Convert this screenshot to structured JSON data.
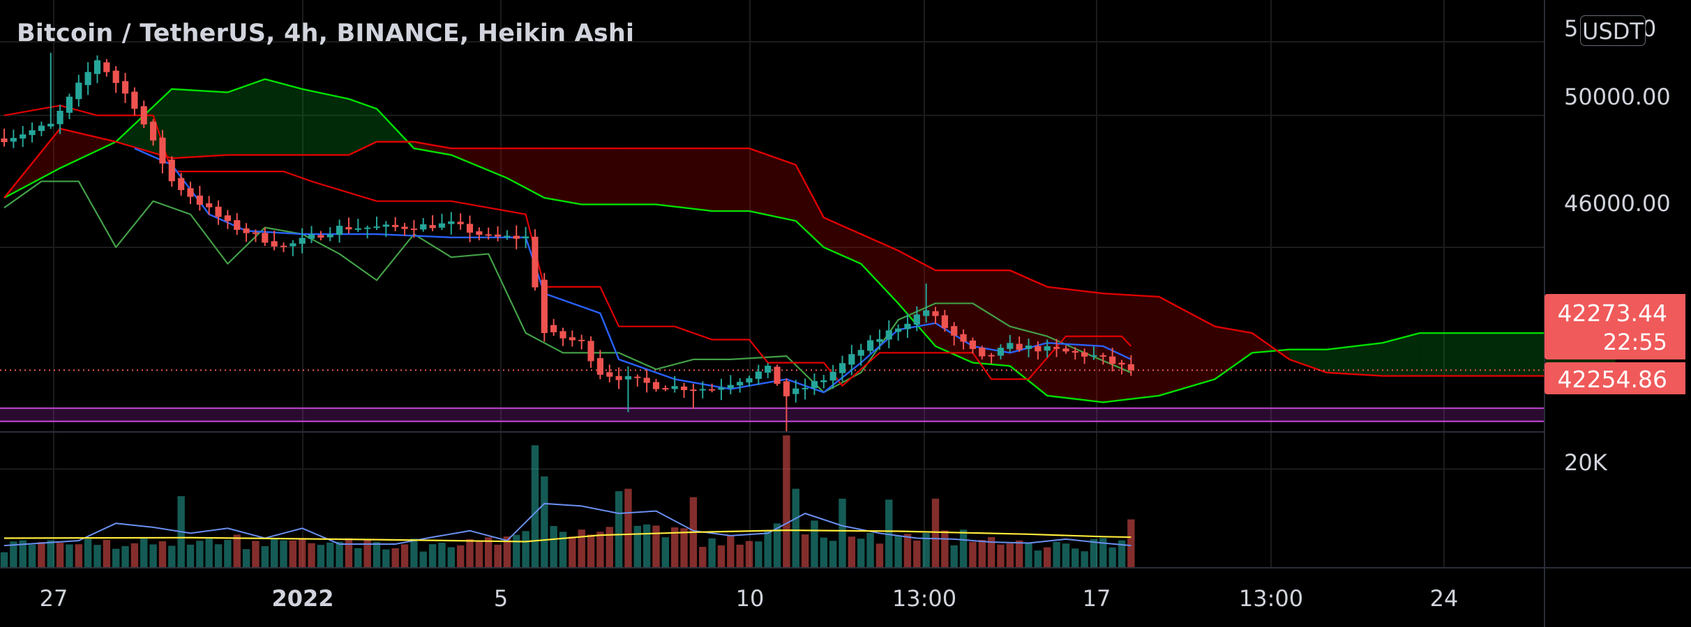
{
  "header": {
    "title": "Bitcoin / TetherUS, 4h, BINANCE, Heikin Ashi",
    "currency": "USDT"
  },
  "colors": {
    "background": "#000000",
    "bull": "#26a69a",
    "bear": "#ef5350",
    "conversion_line": "#2962ff",
    "base_line": "#e00000",
    "lagging_span": "#43a047",
    "leading_span_a": "#00e000",
    "leading_span_b": "#e00000",
    "level_zone": "#b040c0",
    "volume_ma": "#ffeb3b",
    "volume_fast": "#6a8ff0"
  },
  "price_axis": {
    "labels": [
      "50000.00",
      "46000.00"
    ],
    "partial_top_label": "5         0"
  },
  "volume_axis": {
    "label": "20K"
  },
  "last_price": {
    "value": "42273.44",
    "countdown": "22:55"
  },
  "level": {
    "value": "42254.86"
  },
  "time_axis": {
    "labels": [
      {
        "text": "27",
        "bold": false
      },
      {
        "text": "2022",
        "bold": true
      },
      {
        "text": "5",
        "bold": false
      },
      {
        "text": "10",
        "bold": false
      },
      {
        "text": "13:00",
        "bold": false
      },
      {
        "text": "17",
        "bold": false
      },
      {
        "text": "13:00",
        "bold": false
      },
      {
        "text": "24",
        "bold": false
      }
    ]
  },
  "chart_data": {
    "type": "candlestick",
    "title": "Bitcoin / TetherUS, 4h, BINANCE, Heikin Ashi",
    "price_range": [
      40400,
      53500
    ],
    "volume_range": [
      0,
      26800
    ],
    "candle_count": 122,
    "price_anchors": [
      {
        "i": 0,
        "p": 49300
      },
      {
        "i": 5,
        "p": 49700
      },
      {
        "i": 10,
        "p": 51700
      },
      {
        "i": 14,
        "p": 50300
      },
      {
        "i": 18,
        "p": 48000
      },
      {
        "i": 24,
        "p": 46700
      },
      {
        "i": 30,
        "p": 46000
      },
      {
        "i": 36,
        "p": 46600
      },
      {
        "i": 42,
        "p": 46600
      },
      {
        "i": 48,
        "p": 46700
      },
      {
        "i": 52,
        "p": 46300
      },
      {
        "i": 56,
        "p": 46300
      },
      {
        "i": 58,
        "p": 43400
      },
      {
        "i": 62,
        "p": 43100
      },
      {
        "i": 64,
        "p": 42200
      },
      {
        "i": 70,
        "p": 41800
      },
      {
        "i": 76,
        "p": 41700
      },
      {
        "i": 82,
        "p": 42300
      },
      {
        "i": 84,
        "p": 41500
      },
      {
        "i": 88,
        "p": 42000
      },
      {
        "i": 92,
        "p": 42900
      },
      {
        "i": 96,
        "p": 43600
      },
      {
        "i": 99,
        "p": 44100
      },
      {
        "i": 102,
        "p": 43300
      },
      {
        "i": 105,
        "p": 42600
      },
      {
        "i": 108,
        "p": 43000
      },
      {
        "i": 112,
        "p": 42900
      },
      {
        "i": 117,
        "p": 42700
      },
      {
        "i": 121,
        "p": 42270
      }
    ],
    "wick_extremes": [
      {
        "i": 5,
        "high": 51900
      },
      {
        "i": 67,
        "low": 41000
      },
      {
        "i": 74,
        "low": 41100
      },
      {
        "i": 84,
        "low": 40400
      },
      {
        "i": 99,
        "high": 44900
      }
    ],
    "conversion_line": [
      {
        "i": 14,
        "p": 49000
      },
      {
        "i": 18,
        "p": 48500
      },
      {
        "i": 22,
        "p": 47000
      },
      {
        "i": 26,
        "p": 46500
      },
      {
        "i": 32,
        "p": 46400
      },
      {
        "i": 40,
        "p": 46400
      },
      {
        "i": 48,
        "p": 46300
      },
      {
        "i": 56,
        "p": 46300
      },
      {
        "i": 58,
        "p": 44600
      },
      {
        "i": 64,
        "p": 44000
      },
      {
        "i": 66,
        "p": 42600
      },
      {
        "i": 72,
        "p": 42000
      },
      {
        "i": 78,
        "p": 41700
      },
      {
        "i": 84,
        "p": 42000
      },
      {
        "i": 88,
        "p": 41600
      },
      {
        "i": 92,
        "p": 42500
      },
      {
        "i": 96,
        "p": 43500
      },
      {
        "i": 100,
        "p": 43700
      },
      {
        "i": 104,
        "p": 43000
      },
      {
        "i": 108,
        "p": 42800
      },
      {
        "i": 112,
        "p": 43100
      },
      {
        "i": 118,
        "p": 43000
      },
      {
        "i": 121,
        "p": 42600
      }
    ],
    "base_line": [
      {
        "i": 0,
        "p": 50000
      },
      {
        "i": 6,
        "p": 50300
      },
      {
        "i": 10,
        "p": 50000
      },
      {
        "i": 16,
        "p": 50000
      },
      {
        "i": 18,
        "p": 48300
      },
      {
        "i": 24,
        "p": 48300
      },
      {
        "i": 30,
        "p": 48300
      },
      {
        "i": 33,
        "p": 48000
      },
      {
        "i": 40,
        "p": 47400
      },
      {
        "i": 48,
        "p": 47400
      },
      {
        "i": 56,
        "p": 47000
      },
      {
        "i": 58,
        "p": 44800
      },
      {
        "i": 64,
        "p": 44800
      },
      {
        "i": 66,
        "p": 43600
      },
      {
        "i": 72,
        "p": 43600
      },
      {
        "i": 76,
        "p": 43200
      },
      {
        "i": 80,
        "p": 43200
      },
      {
        "i": 82,
        "p": 42500
      },
      {
        "i": 88,
        "p": 42500
      },
      {
        "i": 90,
        "p": 41800
      },
      {
        "i": 94,
        "p": 42800
      },
      {
        "i": 104,
        "p": 42800
      },
      {
        "i": 106,
        "p": 42000
      },
      {
        "i": 110,
        "p": 42000
      },
      {
        "i": 114,
        "p": 43300
      },
      {
        "i": 120,
        "p": 43300
      },
      {
        "i": 121,
        "p": 43000
      }
    ],
    "lagging_span": [
      {
        "i": 0,
        "p": 47200
      },
      {
        "i": 4,
        "p": 48000
      },
      {
        "i": 8,
        "p": 48000
      },
      {
        "i": 12,
        "p": 46000
      },
      {
        "i": 16,
        "p": 47400
      },
      {
        "i": 20,
        "p": 47000
      },
      {
        "i": 24,
        "p": 45500
      },
      {
        "i": 28,
        "p": 46600
      },
      {
        "i": 32,
        "p": 46400
      },
      {
        "i": 36,
        "p": 45800
      },
      {
        "i": 40,
        "p": 45000
      },
      {
        "i": 44,
        "p": 46400
      },
      {
        "i": 48,
        "p": 45700
      },
      {
        "i": 52,
        "p": 45800
      },
      {
        "i": 56,
        "p": 43400
      },
      {
        "i": 60,
        "p": 42800
      },
      {
        "i": 66,
        "p": 42800
      },
      {
        "i": 70,
        "p": 42300
      },
      {
        "i": 74,
        "p": 42600
      },
      {
        "i": 78,
        "p": 42600
      },
      {
        "i": 84,
        "p": 42700
      },
      {
        "i": 88,
        "p": 41600
      },
      {
        "i": 92,
        "p": 42200
      },
      {
        "i": 96,
        "p": 43800
      },
      {
        "i": 100,
        "p": 44300
      },
      {
        "i": 104,
        "p": 44300
      },
      {
        "i": 108,
        "p": 43600
      },
      {
        "i": 112,
        "p": 43300
      },
      {
        "i": 116,
        "p": 42800
      },
      {
        "i": 121,
        "p": 42200
      }
    ],
    "cloud": [
      {
        "i": 0,
        "a": 47500,
        "b": 47500
      },
      {
        "i": 6,
        "a": 48400,
        "b": 49600
      },
      {
        "i": 12,
        "a": 49200,
        "b": 49200
      },
      {
        "i": 18,
        "a": 50800,
        "b": 48700
      },
      {
        "i": 24,
        "a": 50700,
        "b": 48800
      },
      {
        "i": 28,
        "a": 51100,
        "b": 48800
      },
      {
        "i": 32,
        "a": 50800,
        "b": 48800
      },
      {
        "i": 37,
        "a": 50500,
        "b": 48800
      },
      {
        "i": 40,
        "a": 50200,
        "b": 49200
      },
      {
        "i": 44,
        "a": 49000,
        "b": 49200
      },
      {
        "i": 48,
        "a": 48800,
        "b": 49000
      },
      {
        "i": 54,
        "a": 48100,
        "b": 49000
      },
      {
        "i": 58,
        "a": 47500,
        "b": 49000
      },
      {
        "i": 62,
        "a": 47300,
        "b": 49000
      },
      {
        "i": 66,
        "a": 47300,
        "b": 49000
      },
      {
        "i": 70,
        "a": 47300,
        "b": 49000
      },
      {
        "i": 76,
        "a": 47100,
        "b": 49000
      },
      {
        "i": 80,
        "a": 47100,
        "b": 49000
      },
      {
        "i": 85,
        "a": 46800,
        "b": 48500
      },
      {
        "i": 88,
        "a": 46000,
        "b": 46900
      },
      {
        "i": 92,
        "a": 45500,
        "b": 46400
      },
      {
        "i": 96,
        "a": 44300,
        "b": 45900
      },
      {
        "i": 100,
        "a": 43000,
        "b": 45300
      },
      {
        "i": 104,
        "a": 42500,
        "b": 45300
      },
      {
        "i": 108,
        "a": 42400,
        "b": 45300
      },
      {
        "i": 112,
        "a": 41500,
        "b": 44800
      },
      {
        "i": 118,
        "a": 41300,
        "b": 44600
      },
      {
        "i": 124,
        "a": 41500,
        "b": 44500
      },
      {
        "i": 130,
        "a": 42000,
        "b": 43600
      },
      {
        "i": 134,
        "a": 42800,
        "b": 43400
      },
      {
        "i": 138,
        "a": 42900,
        "b": 42600
      },
      {
        "i": 142,
        "a": 42900,
        "b": 42200
      },
      {
        "i": 148,
        "a": 43100,
        "b": 42100
      },
      {
        "i": 152,
        "a": 43400,
        "b": 42100
      },
      {
        "i": 158,
        "a": 43400,
        "b": 42100
      },
      {
        "i": 162,
        "a": 43400,
        "b": 42100
      },
      {
        "i": 166,
        "a": 43400,
        "b": 42100
      },
      {
        "i": 170,
        "a": 43300,
        "b": 42100
      },
      {
        "i": 173,
        "a": 43100,
        "b": 42100
      }
    ],
    "level_zone": {
      "top": 41120,
      "bottom": 40720
    },
    "volume_anchors": [
      {
        "i": 0,
        "v": 4500
      },
      {
        "i": 8,
        "v": 4200
      },
      {
        "i": 12,
        "v": 5500
      },
      {
        "i": 16,
        "v": 5000
      },
      {
        "i": 22,
        "v": 6000
      },
      {
        "i": 26,
        "v": 5000
      },
      {
        "i": 30,
        "v": 4800
      },
      {
        "i": 34,
        "v": 5200
      },
      {
        "i": 40,
        "v": 4500
      },
      {
        "i": 46,
        "v": 4600
      },
      {
        "i": 50,
        "v": 4500
      },
      {
        "i": 54,
        "v": 5000
      },
      {
        "i": 57,
        "v": 11000
      },
      {
        "i": 60,
        "v": 9000
      },
      {
        "i": 64,
        "v": 8000
      },
      {
        "i": 68,
        "v": 8500
      },
      {
        "i": 72,
        "v": 7000
      },
      {
        "i": 76,
        "v": 5500
      },
      {
        "i": 80,
        "v": 6500
      },
      {
        "i": 84,
        "v": 9500
      },
      {
        "i": 88,
        "v": 7000
      },
      {
        "i": 92,
        "v": 6000
      },
      {
        "i": 96,
        "v": 5500
      },
      {
        "i": 100,
        "v": 6500
      },
      {
        "i": 104,
        "v": 5800
      },
      {
        "i": 108,
        "v": 5200
      },
      {
        "i": 112,
        "v": 4800
      },
      {
        "i": 116,
        "v": 4500
      },
      {
        "i": 121,
        "v": 6000
      }
    ],
    "volume_spikes": [
      {
        "i": 19,
        "v": 14500
      },
      {
        "i": 57,
        "v": 24800
      },
      {
        "i": 58,
        "v": 18500
      },
      {
        "i": 66,
        "v": 15500
      },
      {
        "i": 67,
        "v": 16000
      },
      {
        "i": 74,
        "v": 14300
      },
      {
        "i": 84,
        "v": 26800
      },
      {
        "i": 85,
        "v": 16000
      },
      {
        "i": 90,
        "v": 14000
      },
      {
        "i": 95,
        "v": 13800
      },
      {
        "i": 100,
        "v": 14000
      },
      {
        "i": 121,
        "v": 9800
      }
    ],
    "volume_ma": [
      {
        "i": 0,
        "v": 6000
      },
      {
        "i": 20,
        "v": 6100
      },
      {
        "i": 40,
        "v": 5700
      },
      {
        "i": 56,
        "v": 5300
      },
      {
        "i": 64,
        "v": 6600
      },
      {
        "i": 74,
        "v": 7200
      },
      {
        "i": 84,
        "v": 7600
      },
      {
        "i": 96,
        "v": 7400
      },
      {
        "i": 110,
        "v": 6800
      },
      {
        "i": 118,
        "v": 6300
      },
      {
        "i": 121,
        "v": 6200
      }
    ],
    "volume_fast": [
      {
        "i": 0,
        "v": 4500
      },
      {
        "i": 8,
        "v": 5500
      },
      {
        "i": 12,
        "v": 9000
      },
      {
        "i": 16,
        "v": 8200
      },
      {
        "i": 20,
        "v": 7000
      },
      {
        "i": 24,
        "v": 8000
      },
      {
        "i": 28,
        "v": 6000
      },
      {
        "i": 32,
        "v": 8000
      },
      {
        "i": 36,
        "v": 4800
      },
      {
        "i": 42,
        "v": 4800
      },
      {
        "i": 46,
        "v": 6200
      },
      {
        "i": 50,
        "v": 7500
      },
      {
        "i": 54,
        "v": 5500
      },
      {
        "i": 58,
        "v": 13000
      },
      {
        "i": 62,
        "v": 12500
      },
      {
        "i": 66,
        "v": 11000
      },
      {
        "i": 70,
        "v": 11500
      },
      {
        "i": 74,
        "v": 7500
      },
      {
        "i": 78,
        "v": 6500
      },
      {
        "i": 82,
        "v": 7000
      },
      {
        "i": 86,
        "v": 11000
      },
      {
        "i": 90,
        "v": 8500
      },
      {
        "i": 94,
        "v": 7000
      },
      {
        "i": 98,
        "v": 6000
      },
      {
        "i": 102,
        "v": 5800
      },
      {
        "i": 106,
        "v": 5200
      },
      {
        "i": 110,
        "v": 5000
      },
      {
        "i": 114,
        "v": 5800
      },
      {
        "i": 118,
        "v": 5000
      },
      {
        "i": 121,
        "v": 4500
      }
    ]
  }
}
